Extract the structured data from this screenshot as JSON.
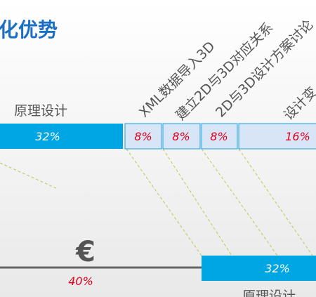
{
  "title": "化优势",
  "top_bar": {
    "label": "原理设计",
    "segments": [
      {
        "value": "32%"
      },
      {
        "value": "8%",
        "label": "XML数据导入3D"
      },
      {
        "value": "8%",
        "label": "建立2D与3D对应关系"
      },
      {
        "value": "8%",
        "label": "2D与3D设计方案讨论"
      },
      {
        "value": "16%",
        "label": "设计变"
      }
    ]
  },
  "bottom": {
    "icon": "€",
    "left_value": "40%",
    "right_value": "32%",
    "right_label": "原理设计"
  }
}
